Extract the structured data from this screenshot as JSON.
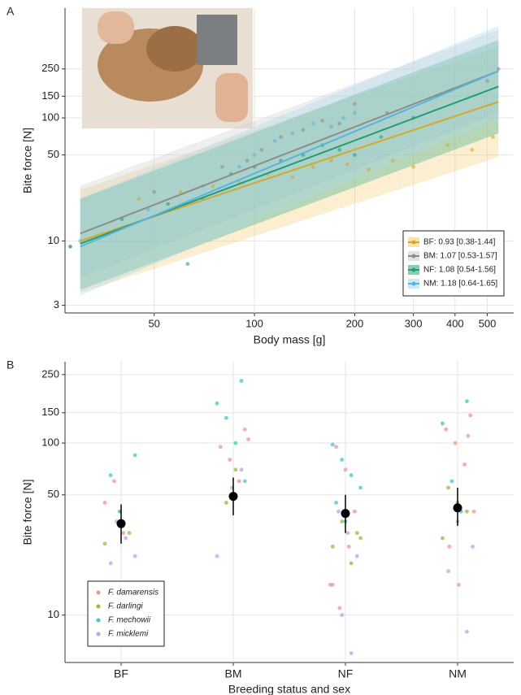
{
  "chart_data": [
    {
      "type": "scatter",
      "panel_label": "A",
      "x_label": "Body mass [g]",
      "y_label": "Bite force [N]",
      "log_x": true,
      "log_y": true,
      "grid": true,
      "legend": "bottom right",
      "xlim": [
        27,
        600
      ],
      "ylim": [
        2.6,
        780
      ],
      "xticks": [
        50,
        100,
        200,
        300,
        400,
        500
      ],
      "yticks": [
        3,
        10,
        50,
        100,
        150,
        250
      ],
      "series": [
        {
          "name": "BF: 0.93 [0.38-1.44]",
          "color": "#d4a82a",
          "band_color": "#f3cf7a",
          "x": [
            45,
            60,
            75,
            90,
            110,
            130,
            150,
            170,
            190,
            220,
            260,
            300,
            380,
            450,
            520
          ],
          "values": [
            22,
            25,
            28,
            30,
            35,
            33,
            40,
            45,
            42,
            38,
            45,
            40,
            60,
            55,
            70
          ],
          "fit_x": [
            30,
            540
          ],
          "fit_y": [
            10,
            135
          ],
          "fit_lower": [
            3.8,
            48
          ],
          "fit_upper": [
            26,
            380
          ]
        },
        {
          "name": "BM: 1.07 [0.53-1.57]",
          "color": "#8c8c8c",
          "band_color": "#cfcfcf",
          "x": [
            28,
            50,
            80,
            95,
            105,
            120,
            140,
            160,
            180,
            200,
            250,
            350,
            500,
            540
          ],
          "values": [
            9,
            25,
            40,
            45,
            55,
            70,
            80,
            95,
            90,
            130,
            110,
            150,
            200,
            250
          ],
          "fit_x": [
            30,
            540
          ],
          "fit_y": [
            11.5,
            240
          ],
          "fit_lower": [
            5,
            110
          ],
          "fit_upper": [
            28,
            520
          ]
        },
        {
          "name": "NF: 1.08 [0.54-1.56]",
          "color": "#1f9e78",
          "band_color": "#3aa884",
          "x": [
            28,
            40,
            55,
            63,
            70,
            85,
            100,
            120,
            140,
            160,
            180,
            200,
            240,
            300
          ],
          "values": [
            9,
            15,
            20,
            6.5,
            22,
            35,
            40,
            45,
            50,
            60,
            55,
            50,
            70,
            100
          ],
          "fit_x": [
            30,
            540
          ],
          "fit_y": [
            9.5,
            180
          ],
          "fit_lower": [
            4,
            75
          ],
          "fit_upper": [
            22,
            430
          ]
        },
        {
          "name": "NM: 1.18 [0.64-1.65]",
          "color": "#58b4e0",
          "band_color": "#a8d8f0",
          "x": [
            30,
            48,
            70,
            90,
            100,
            115,
            130,
            150,
            170,
            185,
            200
          ],
          "values": [
            10,
            18,
            28,
            40,
            50,
            65,
            75,
            90,
            85,
            100,
            110
          ],
          "fit_x": [
            30,
            540
          ],
          "fit_y": [
            9,
            240
          ],
          "fit_lower": [
            3.6,
            100
          ],
          "fit_upper": [
            22,
            560
          ]
        }
      ]
    },
    {
      "type": "strip",
      "panel_label": "B",
      "x_label": "Breeding status and sex",
      "y_label": "Bite force [N]",
      "log_y": true,
      "grid": true,
      "legend": "bottom left",
      "categories": [
        "BF",
        "BM",
        "NF",
        "NM"
      ],
      "ylim": [
        5.3,
        297
      ],
      "yticks": [
        10,
        50,
        100,
        150,
        250
      ],
      "series": [
        {
          "name": "F. damarensis",
          "color": "#f4928c",
          "groups": [
            "BF",
            "BF",
            "BF",
            "BM",
            "BM",
            "BM",
            "BM",
            "BM",
            "NF",
            "NF",
            "NF",
            "NF",
            "NF",
            "NF",
            "NM",
            "NM",
            "NM",
            "NM",
            "NM",
            "NM",
            "NM",
            "NM"
          ],
          "values": [
            45,
            60,
            30,
            120,
            95,
            80,
            60,
            105,
            95,
            70,
            40,
            15,
            11,
            25,
            145,
            120,
            100,
            75,
            40,
            25,
            15,
            110
          ]
        },
        {
          "name": "F. darlingi",
          "color": "#9bb83a",
          "groups": [
            "BF",
            "BF",
            "BF",
            "BM",
            "BM",
            "NF",
            "NF",
            "NF",
            "NF",
            "NF",
            "NM",
            "NM",
            "NM",
            "NM"
          ],
          "values": [
            40,
            30,
            26,
            45,
            70,
            30,
            25,
            35,
            20,
            28,
            55,
            45,
            40,
            28
          ]
        },
        {
          "name": "F. mechowii",
          "color": "#3cc8cc",
          "groups": [
            "BF",
            "BF",
            "BF",
            "BM",
            "BM",
            "BM",
            "BM",
            "BM",
            "NF",
            "NF",
            "NF",
            "NF",
            "NF",
            "NF",
            "NM",
            "NM",
            "NM",
            "NM"
          ],
          "values": [
            85,
            65,
            40,
            230,
            170,
            140,
            100,
            60,
            98,
            80,
            65,
            55,
            45,
            35,
            175,
            130,
            60,
            40
          ]
        },
        {
          "name": "F. micklemi",
          "color": "#c89af0",
          "groups": [
            "BF",
            "BF",
            "BF",
            "BF",
            "BM",
            "BM",
            "BM",
            "NF",
            "NF",
            "NF",
            "NF",
            "NF",
            "NF",
            "NM",
            "NM",
            "NM",
            "NM"
          ],
          "values": [
            35,
            28,
            22,
            20,
            55,
            70,
            22,
            40,
            30,
            22,
            15,
            10,
            6,
            25,
            18,
            35,
            8
          ]
        }
      ],
      "means": [
        34,
        49,
        39,
        42
      ],
      "lower": [
        26,
        38,
        30,
        33
      ],
      "upper": [
        44,
        63,
        50,
        55
      ]
    }
  ]
}
